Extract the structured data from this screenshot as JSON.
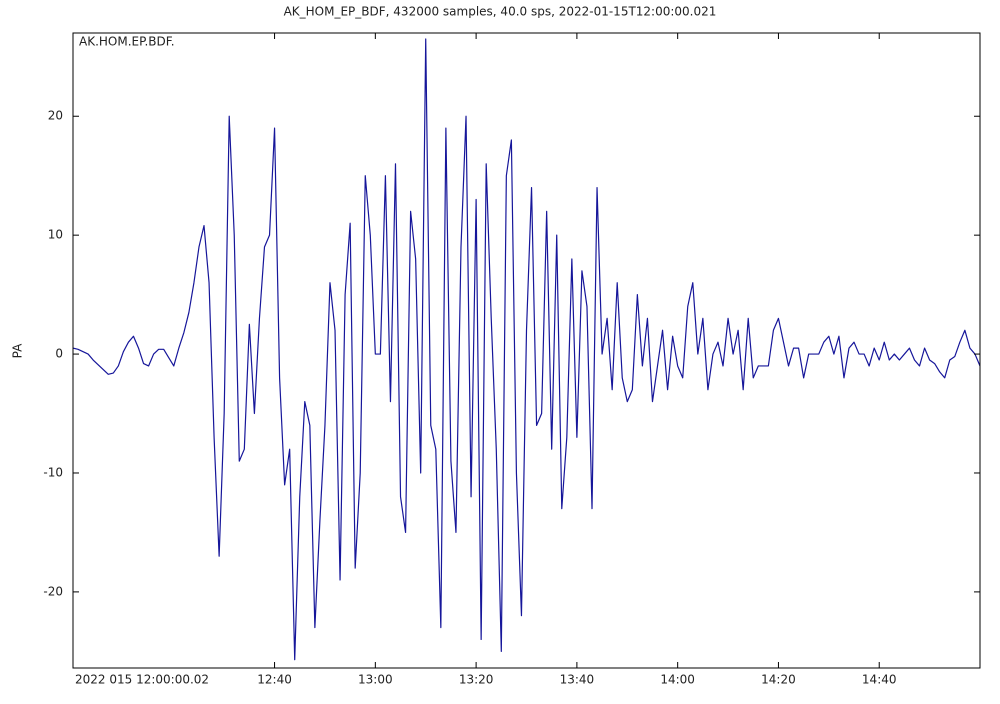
{
  "chart_data": {
    "type": "line",
    "title": "AK_HOM_EP_BDF, 432000 samples, 40.0 sps, 2022-01-15T12:00:00.021",
    "annotation": "AK.HOM.EP.BDF.",
    "y_label": "PA",
    "xlim": [
      0,
      180
    ],
    "xticks": [
      {
        "value": 0,
        "label": "2022 015 12:00:00.02"
      },
      {
        "value": 40,
        "label": "12:40"
      },
      {
        "value": 60,
        "label": "13:00"
      },
      {
        "value": 80,
        "label": "13:20"
      },
      {
        "value": 100,
        "label": "13:40"
      },
      {
        "value": 120,
        "label": "14:00"
      },
      {
        "value": 140,
        "label": "14:20"
      },
      {
        "value": 160,
        "label": "14:40"
      }
    ],
    "ylim": [
      -26.4,
      27
    ],
    "yticks": [
      -20,
      -10,
      0,
      10,
      20
    ],
    "series": [
      {
        "color": "#16169a",
        "x": [
          0,
          1,
          2,
          3,
          4,
          5,
          6,
          7,
          8,
          9,
          10,
          11,
          12,
          13,
          14,
          15,
          16,
          17,
          18,
          19,
          20,
          21,
          22,
          23,
          24,
          25,
          26,
          27,
          28,
          29,
          30,
          31,
          32,
          33,
          34,
          35,
          36,
          37,
          38,
          39,
          40,
          41,
          42,
          43,
          44,
          45,
          46,
          47,
          48,
          49,
          50,
          51,
          52,
          53,
          54,
          55,
          56,
          57,
          58,
          59,
          60,
          61,
          62,
          63,
          64,
          65,
          66,
          67,
          68,
          69,
          70,
          71,
          72,
          73,
          74,
          75,
          76,
          77,
          78,
          79,
          80,
          81,
          82,
          83,
          84,
          85,
          86,
          87,
          88,
          89,
          90,
          91,
          92,
          93,
          94,
          95,
          96,
          97,
          98,
          99,
          100,
          101,
          102,
          103,
          104,
          105,
          106,
          107,
          108,
          109,
          110,
          111,
          112,
          113,
          114,
          115,
          116,
          117,
          118,
          119,
          120,
          121,
          122,
          123,
          124,
          125,
          126,
          127,
          128,
          129,
          130,
          131,
          132,
          133,
          134,
          135,
          136,
          137,
          138,
          139,
          140,
          141,
          142,
          143,
          144,
          145,
          146,
          147,
          148,
          149,
          150,
          151,
          152,
          153,
          154,
          155,
          156,
          157,
          158,
          159,
          160,
          161,
          162,
          163,
          164,
          165,
          166,
          167,
          168,
          169,
          170,
          171,
          172,
          173,
          174,
          175,
          176,
          177,
          178,
          179,
          180
        ],
        "values": [
          0.5,
          0.4,
          0.2,
          0,
          -0.5,
          -0.9,
          -1.3,
          -1.7,
          -1.6,
          -1,
          0.2,
          1,
          1.5,
          0.5,
          -0.8,
          -1,
          0,
          0.4,
          0.4,
          -0.3,
          -1,
          0.5,
          1.8,
          3.5,
          6,
          9,
          10.8,
          6,
          -7,
          -17,
          -5,
          20,
          10,
          -9,
          -8,
          2.5,
          -5,
          3,
          9,
          10,
          19,
          -2,
          -11,
          -8,
          -25.7,
          -12,
          -4,
          -6,
          -23,
          -14,
          -6,
          6,
          2,
          -19,
          5,
          11,
          -18,
          -10,
          15,
          10,
          0,
          0,
          15,
          -4,
          16,
          -12,
          -15,
          12,
          8,
          -10,
          26.5,
          -6,
          -8,
          -23,
          19,
          -9,
          -15,
          9,
          20,
          -12,
          13,
          -24,
          16,
          3,
          -8,
          -25,
          15,
          18,
          -10,
          -22,
          2,
          14,
          -6,
          -5,
          12,
          -8,
          10,
          -13,
          -7,
          8,
          -7,
          7,
          4,
          -13,
          14,
          0,
          3,
          -3,
          6,
          -2,
          -4,
          -3,
          5,
          -1,
          3,
          -4,
          -1,
          2,
          -3,
          1.5,
          -1,
          -2,
          4,
          6,
          0,
          3,
          -3,
          0,
          1,
          -1,
          3,
          0,
          2,
          -3,
          3,
          -2,
          -1,
          -1,
          -1,
          2,
          3,
          1,
          -1,
          0.5,
          0.5,
          -2,
          0,
          0,
          0,
          1,
          1.5,
          0,
          1.5,
          -2,
          0.5,
          1,
          0,
          0,
          -1,
          0.5,
          -0.5,
          1,
          -0.5,
          0,
          -0.5,
          0,
          0.5,
          -0.5,
          -1,
          0.5,
          -0.5,
          -0.8,
          -1.5,
          -2,
          -0.5,
          -0.2,
          1,
          2,
          0.5,
          0,
          -1
        ]
      }
    ]
  }
}
